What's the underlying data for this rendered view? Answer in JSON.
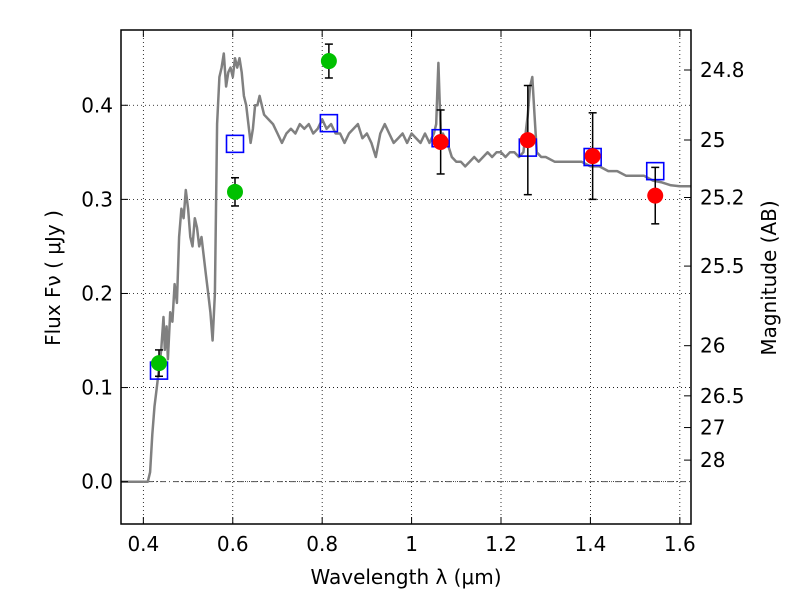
{
  "chart_data": {
    "type": "scatter",
    "xlabel": "Wavelength  λ (μm)",
    "ylabel": "Flux  Fν  ( μJy )",
    "y2label": "Magnitude (AB)",
    "xlim": [
      0.35,
      1.625
    ],
    "ylim": [
      -0.045,
      0.48
    ],
    "x_ticks": [
      0.4,
      0.6,
      0.8,
      1.0,
      1.2,
      1.4,
      1.6
    ],
    "x_tick_labels": [
      "0.4",
      "0.6",
      "0.8",
      "1",
      "1.2",
      "1.4",
      "1.6"
    ],
    "y_ticks": [
      0.0,
      0.1,
      0.2,
      0.3,
      0.4
    ],
    "y_tick_labels": [
      "0.0",
      "0.1",
      "0.2",
      "0.3",
      "0.4"
    ],
    "magnitude_ticks": [
      {
        "label": "24.8",
        "flux": 0.4375
      },
      {
        "label": "25",
        "flux": 0.3631
      },
      {
        "label": "25.2",
        "flux": 0.302
      },
      {
        "label": "25.5",
        "flux": 0.2291
      },
      {
        "label": "26",
        "flux": 0.1445
      },
      {
        "label": "26.5",
        "flux": 0.0912
      },
      {
        "label": "27",
        "flux": 0.0575
      },
      {
        "label": "28",
        "flux": 0.0229
      }
    ],
    "grid": true,
    "zero_line": true,
    "series": [
      {
        "type": "line",
        "color": "#808080",
        "points": [
          [
            0.35,
            0.0
          ],
          [
            0.41,
            0.0
          ],
          [
            0.415,
            0.01
          ],
          [
            0.42,
            0.05
          ],
          [
            0.425,
            0.08
          ],
          [
            0.43,
            0.1
          ],
          [
            0.435,
            0.12
          ],
          [
            0.44,
            0.14
          ],
          [
            0.445,
            0.175
          ],
          [
            0.448,
            0.14
          ],
          [
            0.452,
            0.165
          ],
          [
            0.455,
            0.13
          ],
          [
            0.46,
            0.18
          ],
          [
            0.465,
            0.17
          ],
          [
            0.47,
            0.21
          ],
          [
            0.475,
            0.19
          ],
          [
            0.48,
            0.26
          ],
          [
            0.485,
            0.29
          ],
          [
            0.49,
            0.28
          ],
          [
            0.495,
            0.31
          ],
          [
            0.5,
            0.29
          ],
          [
            0.505,
            0.26
          ],
          [
            0.51,
            0.25
          ],
          [
            0.515,
            0.28
          ],
          [
            0.52,
            0.27
          ],
          [
            0.525,
            0.25
          ],
          [
            0.53,
            0.26
          ],
          [
            0.535,
            0.24
          ],
          [
            0.54,
            0.22
          ],
          [
            0.545,
            0.2
          ],
          [
            0.55,
            0.18
          ],
          [
            0.555,
            0.15
          ],
          [
            0.56,
            0.2
          ],
          [
            0.565,
            0.38
          ],
          [
            0.57,
            0.43
          ],
          [
            0.575,
            0.44
          ],
          [
            0.58,
            0.455
          ],
          [
            0.585,
            0.42
          ],
          [
            0.59,
            0.435
          ],
          [
            0.595,
            0.44
          ],
          [
            0.6,
            0.43
          ],
          [
            0.605,
            0.45
          ],
          [
            0.61,
            0.44
          ],
          [
            0.615,
            0.45
          ],
          [
            0.62,
            0.435
          ],
          [
            0.625,
            0.41
          ],
          [
            0.63,
            0.4
          ],
          [
            0.635,
            0.38
          ],
          [
            0.64,
            0.36
          ],
          [
            0.645,
            0.375
          ],
          [
            0.65,
            0.4
          ],
          [
            0.655,
            0.4
          ],
          [
            0.66,
            0.41
          ],
          [
            0.665,
            0.4
          ],
          [
            0.67,
            0.39
          ],
          [
            0.68,
            0.385
          ],
          [
            0.69,
            0.38
          ],
          [
            0.7,
            0.37
          ],
          [
            0.71,
            0.36
          ],
          [
            0.72,
            0.37
          ],
          [
            0.73,
            0.375
          ],
          [
            0.74,
            0.37
          ],
          [
            0.75,
            0.38
          ],
          [
            0.76,
            0.375
          ],
          [
            0.77,
            0.38
          ],
          [
            0.78,
            0.37
          ],
          [
            0.79,
            0.375
          ],
          [
            0.8,
            0.385
          ],
          [
            0.81,
            0.375
          ],
          [
            0.82,
            0.38
          ],
          [
            0.83,
            0.37
          ],
          [
            0.84,
            0.37
          ],
          [
            0.85,
            0.36
          ],
          [
            0.86,
            0.37
          ],
          [
            0.87,
            0.375
          ],
          [
            0.88,
            0.38
          ],
          [
            0.89,
            0.365
          ],
          [
            0.9,
            0.37
          ],
          [
            0.91,
            0.36
          ],
          [
            0.92,
            0.345
          ],
          [
            0.93,
            0.37
          ],
          [
            0.94,
            0.38
          ],
          [
            0.95,
            0.37
          ],
          [
            0.96,
            0.36
          ],
          [
            0.97,
            0.365
          ],
          [
            0.98,
            0.37
          ],
          [
            0.99,
            0.36
          ],
          [
            1.0,
            0.37
          ],
          [
            1.01,
            0.365
          ],
          [
            1.02,
            0.36
          ],
          [
            1.03,
            0.37
          ],
          [
            1.04,
            0.36
          ],
          [
            1.05,
            0.37
          ],
          [
            1.055,
            0.38
          ],
          [
            1.058,
            0.42
          ],
          [
            1.06,
            0.445
          ],
          [
            1.063,
            0.4
          ],
          [
            1.066,
            0.36
          ],
          [
            1.07,
            0.37
          ],
          [
            1.08,
            0.36
          ],
          [
            1.09,
            0.345
          ],
          [
            1.1,
            0.34
          ],
          [
            1.11,
            0.34
          ],
          [
            1.12,
            0.335
          ],
          [
            1.13,
            0.34
          ],
          [
            1.14,
            0.345
          ],
          [
            1.15,
            0.34
          ],
          [
            1.16,
            0.345
          ],
          [
            1.17,
            0.35
          ],
          [
            1.18,
            0.345
          ],
          [
            1.19,
            0.35
          ],
          [
            1.2,
            0.35
          ],
          [
            1.21,
            0.345
          ],
          [
            1.22,
            0.35
          ],
          [
            1.23,
            0.35
          ],
          [
            1.24,
            0.345
          ],
          [
            1.25,
            0.35
          ],
          [
            1.255,
            0.37
          ],
          [
            1.26,
            0.39
          ],
          [
            1.265,
            0.42
          ],
          [
            1.27,
            0.43
          ],
          [
            1.275,
            0.39
          ],
          [
            1.28,
            0.35
          ],
          [
            1.29,
            0.345
          ],
          [
            1.3,
            0.345
          ],
          [
            1.32,
            0.34
          ],
          [
            1.34,
            0.34
          ],
          [
            1.36,
            0.34
          ],
          [
            1.38,
            0.34
          ],
          [
            1.4,
            0.335
          ],
          [
            1.42,
            0.335
          ],
          [
            1.44,
            0.33
          ],
          [
            1.46,
            0.33
          ],
          [
            1.48,
            0.325
          ],
          [
            1.5,
            0.325
          ],
          [
            1.52,
            0.325
          ],
          [
            1.54,
            0.32
          ],
          [
            1.56,
            0.318
          ],
          [
            1.58,
            0.315
          ],
          [
            1.6,
            0.314
          ],
          [
            1.625,
            0.314
          ]
        ]
      },
      {
        "type": "marker_square_open",
        "color": "#0000ff",
        "x": [
          0.435,
          0.605,
          0.815,
          1.065,
          1.26,
          1.405,
          1.545
        ],
        "y": [
          0.118,
          0.359,
          0.381,
          0.365,
          0.355,
          0.345,
          0.33
        ]
      },
      {
        "type": "marker_circle",
        "color": "#00c000",
        "x": [
          0.435,
          0.605,
          0.815
        ],
        "y": [
          0.126,
          0.308,
          0.447
        ],
        "yerr": [
          0.014,
          0.015,
          0.018
        ]
      },
      {
        "type": "marker_circle",
        "color": "#ff0000",
        "x": [
          1.065,
          1.26,
          1.405,
          1.545
        ],
        "y": [
          0.361,
          0.363,
          0.346,
          0.304
        ],
        "yerr": [
          0.034,
          0.058,
          0.046,
          0.03
        ]
      }
    ]
  }
}
